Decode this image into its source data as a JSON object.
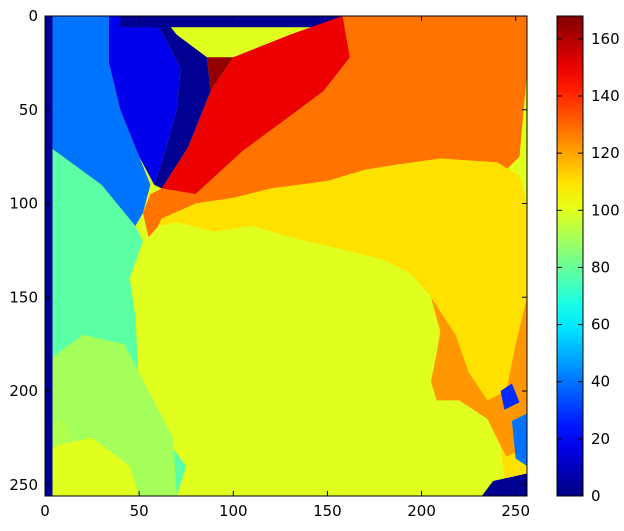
{
  "chart_data": {
    "type": "heatmap",
    "colormap": "jet",
    "title": "",
    "xlabel": "",
    "ylabel": "",
    "xlim": [
      0,
      256
    ],
    "ylim": [
      256,
      0
    ],
    "x_ticks": [
      0,
      50,
      100,
      150,
      200,
      250
    ],
    "y_ticks": [
      0,
      50,
      100,
      150,
      200,
      250
    ],
    "colorbar": {
      "range": [
        0,
        168
      ],
      "ticks": [
        0,
        20,
        40,
        60,
        80,
        100,
        120,
        140,
        160
      ]
    },
    "regions": [
      {
        "value": 100,
        "polygon": [
          [
            0,
            0
          ],
          [
            256,
            0
          ],
          [
            256,
            256
          ],
          [
            0,
            256
          ]
        ]
      },
      {
        "value": 78,
        "polygon": [
          [
            0,
            68
          ],
          [
            30,
            90
          ],
          [
            48,
            112
          ],
          [
            52,
            120
          ],
          [
            45,
            140
          ],
          [
            48,
            160
          ],
          [
            50,
            200
          ],
          [
            60,
            220
          ],
          [
            75,
            240
          ],
          [
            70,
            256
          ],
          [
            0,
            256
          ]
        ]
      },
      {
        "value": 90,
        "polygon": [
          [
            0,
            185
          ],
          [
            20,
            170
          ],
          [
            42,
            175
          ],
          [
            55,
            200
          ],
          [
            68,
            225
          ],
          [
            70,
            256
          ],
          [
            0,
            256
          ]
        ]
      },
      {
        "value": 100,
        "polygon": [
          [
            0,
            230
          ],
          [
            25,
            225
          ],
          [
            45,
            240
          ],
          [
            50,
            256
          ],
          [
            0,
            256
          ]
        ]
      },
      {
        "value": 92,
        "polygon": [
          [
            0,
            218
          ],
          [
            10,
            215
          ],
          [
            14,
            225
          ],
          [
            5,
            230
          ],
          [
            0,
            228
          ]
        ]
      },
      {
        "value": 40,
        "polygon": [
          [
            0,
            0
          ],
          [
            34,
            0
          ],
          [
            34,
            25
          ],
          [
            40,
            50
          ],
          [
            50,
            75
          ],
          [
            56,
            90
          ],
          [
            52,
            105
          ],
          [
            48,
            112
          ],
          [
            30,
            90
          ],
          [
            0,
            68
          ]
        ]
      },
      {
        "value": 18,
        "polygon": [
          [
            34,
            0
          ],
          [
            56,
            0
          ],
          [
            64,
            12
          ],
          [
            72,
            28
          ],
          [
            70,
            50
          ],
          [
            63,
            75
          ],
          [
            58,
            90
          ],
          [
            50,
            75
          ],
          [
            40,
            50
          ],
          [
            34,
            25
          ]
        ]
      },
      {
        "value": 3,
        "polygon": [
          [
            56,
            0
          ],
          [
            62,
            0
          ],
          [
            70,
            10
          ],
          [
            86,
            22
          ],
          [
            88,
            40
          ],
          [
            76,
            70
          ],
          [
            62,
            92
          ],
          [
            58,
            90
          ],
          [
            63,
            75
          ],
          [
            70,
            50
          ],
          [
            72,
            28
          ],
          [
            64,
            12
          ]
        ]
      },
      {
        "value": 3,
        "polygon": [
          [
            40,
            0
          ],
          [
            256,
            0
          ],
          [
            256,
            6
          ],
          [
            40,
            6
          ]
        ]
      },
      {
        "value": 165,
        "polygon": [
          [
            86,
            22
          ],
          [
            100,
            22
          ],
          [
            88,
            40
          ]
        ]
      },
      {
        "value": 150,
        "polygon": [
          [
            100,
            22
          ],
          [
            130,
            10
          ],
          [
            158,
            0
          ],
          [
            162,
            22
          ],
          [
            148,
            40
          ],
          [
            128,
            55
          ],
          [
            105,
            72
          ],
          [
            80,
            95
          ],
          [
            62,
            92
          ],
          [
            76,
            70
          ],
          [
            88,
            40
          ]
        ]
      },
      {
        "value": 128,
        "polygon": [
          [
            158,
            0
          ],
          [
            256,
            0
          ],
          [
            256,
            30
          ],
          [
            252,
            75
          ],
          [
            245,
            82
          ],
          [
            230,
            78
          ],
          [
            210,
            76
          ],
          [
            182,
            80
          ],
          [
            170,
            82
          ],
          [
            150,
            88
          ],
          [
            120,
            92
          ],
          [
            100,
            97
          ],
          [
            80,
            100
          ],
          [
            62,
            110
          ],
          [
            55,
            118
          ],
          [
            52,
            105
          ],
          [
            56,
            95
          ],
          [
            62,
            92
          ],
          [
            80,
            95
          ],
          [
            105,
            72
          ],
          [
            128,
            55
          ],
          [
            148,
            40
          ],
          [
            162,
            22
          ]
        ]
      },
      {
        "value": 110,
        "polygon": [
          [
            80,
            100
          ],
          [
            100,
            97
          ],
          [
            120,
            92
          ],
          [
            150,
            88
          ],
          [
            170,
            82
          ],
          [
            210,
            76
          ],
          [
            240,
            78
          ],
          [
            252,
            85
          ],
          [
            256,
            100
          ],
          [
            256,
            256
          ],
          [
            245,
            256
          ],
          [
            242,
            230
          ],
          [
            235,
            215
          ],
          [
            225,
            200
          ],
          [
            218,
            190
          ],
          [
            212,
            180
          ],
          [
            205,
            150
          ],
          [
            195,
            138
          ],
          [
            180,
            130
          ],
          [
            160,
            125
          ],
          [
            130,
            118
          ],
          [
            110,
            112
          ],
          [
            90,
            115
          ],
          [
            70,
            110
          ],
          [
            60,
            112
          ],
          [
            62,
            108
          ]
        ]
      },
      {
        "value": 122,
        "polygon": [
          [
            205,
            150
          ],
          [
            218,
            170
          ],
          [
            225,
            190
          ],
          [
            235,
            205
          ],
          [
            245,
            200
          ],
          [
            250,
            175
          ],
          [
            256,
            150
          ],
          [
            256,
            230
          ],
          [
            245,
            235
          ],
          [
            235,
            215
          ],
          [
            220,
            205
          ],
          [
            208,
            205
          ],
          [
            205,
            195
          ],
          [
            208,
            180
          ],
          [
            210,
            168
          ]
        ]
      },
      {
        "value": 28,
        "polygon": [
          [
            242,
            200
          ],
          [
            248,
            196
          ],
          [
            252,
            206
          ],
          [
            244,
            210
          ]
        ]
      },
      {
        "value": 40,
        "polygon": [
          [
            248,
            216
          ],
          [
            256,
            212
          ],
          [
            256,
            240
          ],
          [
            250,
            236
          ]
        ]
      },
      {
        "value": 3,
        "polygon": [
          [
            238,
            248
          ],
          [
            256,
            244
          ],
          [
            256,
            256
          ],
          [
            232,
            256
          ]
        ]
      },
      {
        "value": 3,
        "polygon": [
          [
            0,
            0
          ],
          [
            4,
            0
          ],
          [
            4,
            256
          ],
          [
            0,
            256
          ]
        ]
      }
    ]
  }
}
